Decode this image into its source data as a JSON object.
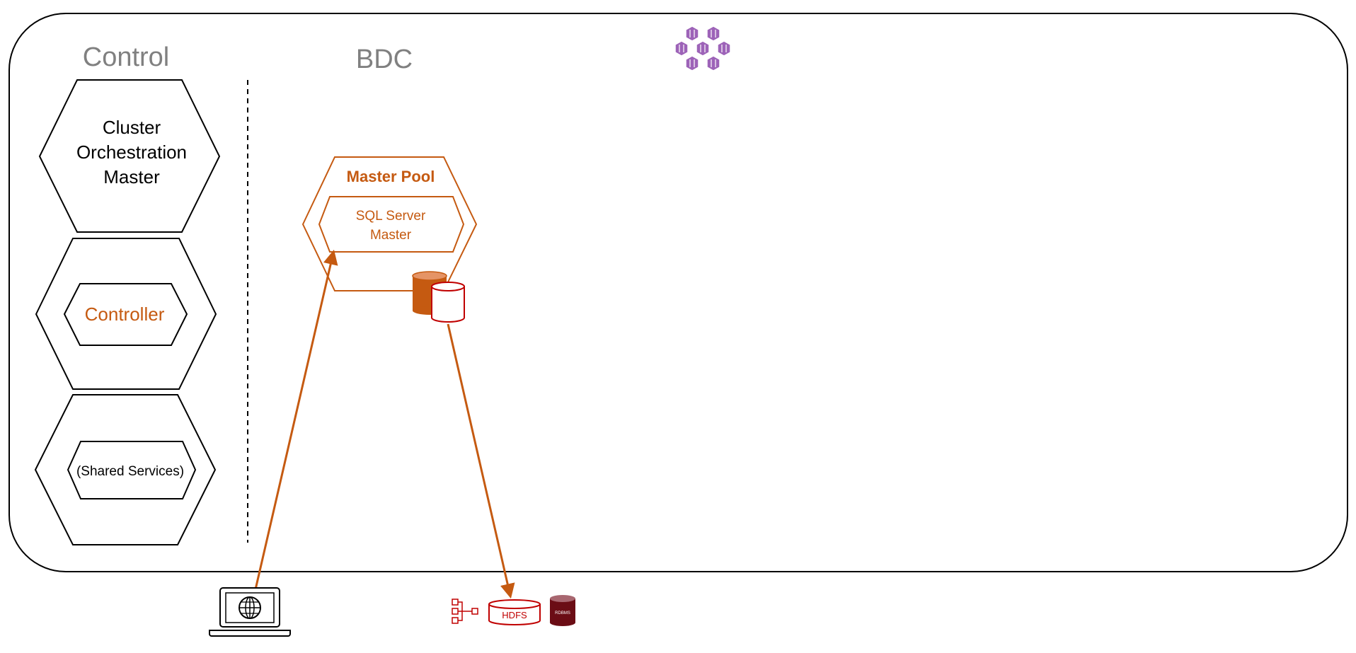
{
  "control": {
    "title": "Control",
    "cluster_master": {
      "lines": [
        "Cluster",
        "Orchestration",
        "Master"
      ]
    },
    "controller": {
      "label": "Controller"
    },
    "shared_services": {
      "label": "(Shared Services)"
    }
  },
  "bdc": {
    "title": "BDC",
    "master_pool": {
      "title": "Master Pool",
      "sql_server": {
        "lines": [
          "SQL Server",
          "Master"
        ]
      }
    }
  },
  "data_sources": {
    "hdfs_label": "HDFS",
    "rdbms_label": "RDBMS"
  },
  "icons": {
    "kubernetes": "kubernetes-containers-icon",
    "laptop": "laptop-globe-icon",
    "hierarchy": "hierarchy-icon",
    "database_pair": "database-pair-icon"
  },
  "colors": {
    "orange": "#c55a11",
    "light_orange": "#e59466",
    "red": "#c00000",
    "dark_red": "#6b0d15",
    "purple": "#9d63b8",
    "gray_text": "#808080",
    "black": "#000000"
  }
}
